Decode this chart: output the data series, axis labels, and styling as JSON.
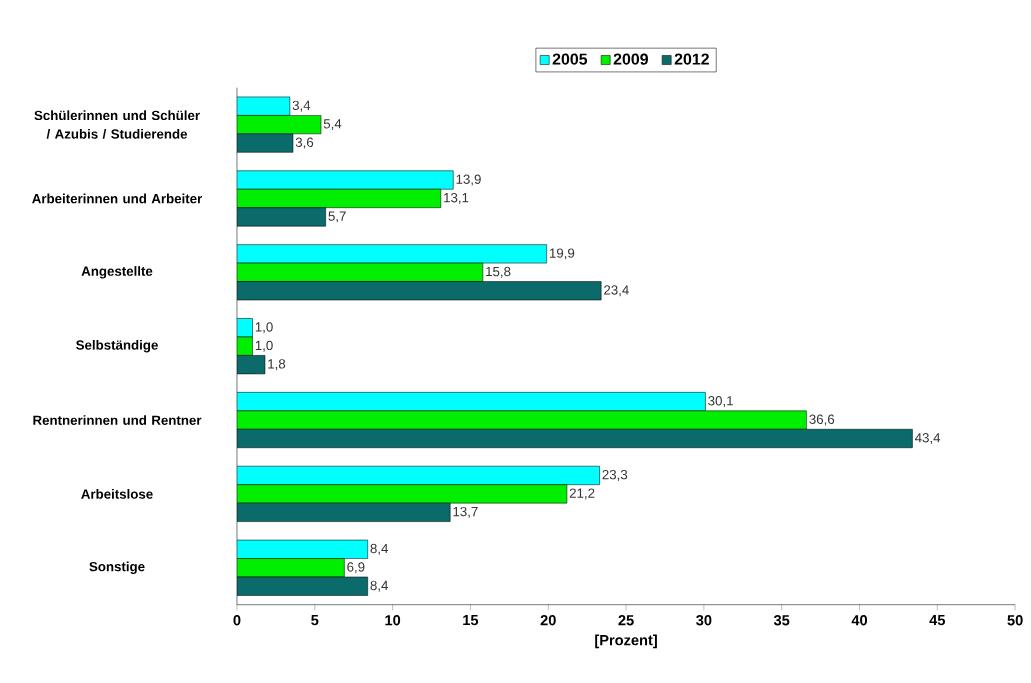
{
  "chart_data": {
    "type": "bar",
    "orientation": "horizontal",
    "xlabel": "[Prozent]",
    "categories": [
      "Schülerinnen und Schüler / Azubis / Studierende",
      "Arbeiterinnen und Arbeiter",
      "Angestellte",
      "Selbständige",
      "Rentnerinnen und Rentner",
      "Arbeitslose",
      "Sonstige"
    ],
    "series": [
      {
        "name": "2005",
        "color": "#00ffff",
        "values": [
          3.4,
          13.9,
          19.9,
          1.0,
          30.1,
          23.3,
          8.4
        ],
        "value_labels": [
          "3,4",
          "13,9",
          "19,9",
          "1,0",
          "30,1",
          "23,3",
          "8,4"
        ]
      },
      {
        "name": "2009",
        "color": "#00ee00",
        "values": [
          5.4,
          13.1,
          15.8,
          1.0,
          36.6,
          21.2,
          6.9
        ],
        "value_labels": [
          "5,4",
          "13,1",
          "15,8",
          "1,0",
          "36,6",
          "21,2",
          "6,9"
        ]
      },
      {
        "name": "2012",
        "color": "#0b6b6b",
        "values": [
          3.6,
          5.7,
          23.4,
          1.8,
          43.4,
          13.7,
          8.4
        ],
        "value_labels": [
          "3,6",
          "5,7",
          "23,4",
          "1,8",
          "43,4",
          "13,7",
          "8,4"
        ]
      }
    ],
    "xlim": [
      0,
      50
    ],
    "xticks": [
      0,
      5,
      10,
      15,
      20,
      25,
      30,
      35,
      40,
      45,
      50
    ],
    "legend": "top",
    "grid": false
  }
}
